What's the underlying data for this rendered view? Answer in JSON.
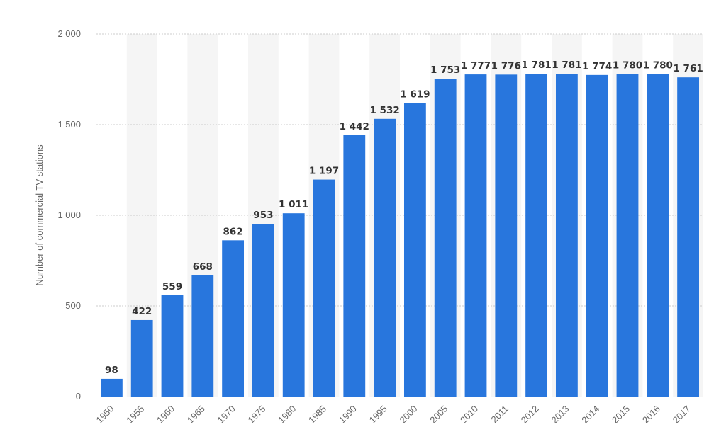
{
  "chart_data": {
    "type": "bar",
    "categories": [
      "1950",
      "1955",
      "1960",
      "1965",
      "1970",
      "1975",
      "1980",
      "1985",
      "1990",
      "1995",
      "2000",
      "2005",
      "2010",
      "2011",
      "2012",
      "2013",
      "2014",
      "2015",
      "2016",
      "2017"
    ],
    "values": [
      98,
      422,
      559,
      668,
      862,
      953,
      1011,
      1197,
      1442,
      1532,
      1619,
      1753,
      1777,
      1776,
      1781,
      1781,
      1774,
      1780,
      1780,
      1761
    ],
    "value_labels": [
      "98",
      "422",
      "559",
      "668",
      "862",
      "953",
      "1 011",
      "1 197",
      "1 442",
      "1 532",
      "1 619",
      "1 753",
      "1 777",
      "1 776",
      "1 781",
      "1 781",
      "1 774",
      "1 780",
      "1 780",
      "1 761"
    ],
    "ylabel": "Number of commercial TV stations",
    "xlabel": "",
    "ylim": [
      0,
      2000
    ],
    "yticks": [
      0,
      500,
      1000,
      1500,
      2000
    ],
    "ytick_labels": [
      "0",
      "500",
      "1 000",
      "1 500",
      "2 000"
    ],
    "grid": true,
    "colors": {
      "bar": "#2876dd",
      "band": "#f5f5f5",
      "grid": "#cccccc"
    }
  }
}
